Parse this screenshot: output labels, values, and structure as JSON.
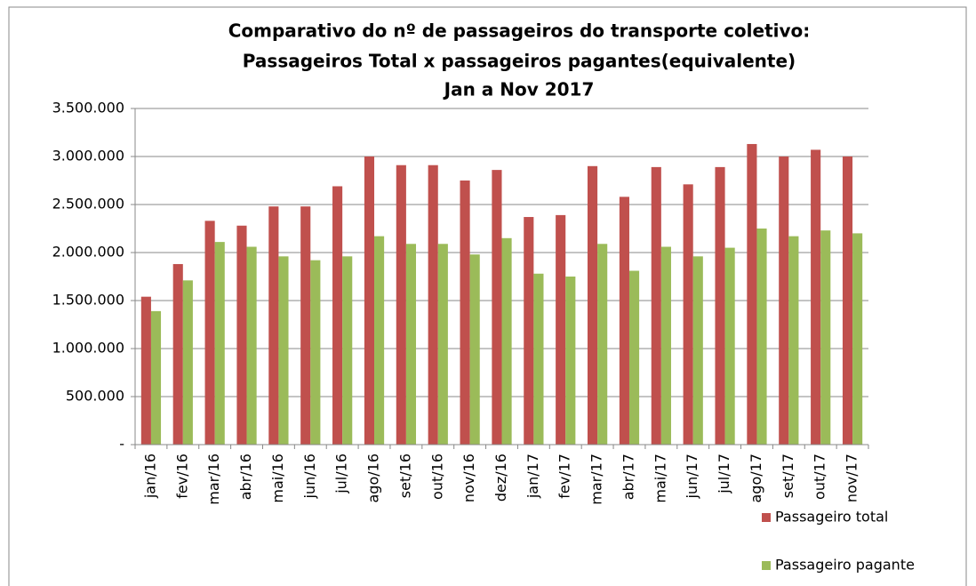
{
  "chart_data": {
    "type": "bar",
    "title": [
      "Comparativo do nº de passageiros do transporte coletivo:",
      "Passageiros Total x passageiros pagantes(equivalente)",
      "Jan a Nov 2017"
    ],
    "categories": [
      "jan/16",
      "fev/16",
      "mar/16",
      "abr/16",
      "mai/16",
      "jun/16",
      "jul/16",
      "ago/16",
      "set/16",
      "out/16",
      "nov/16",
      "dez/16",
      "jan/17",
      "fev/17",
      "mar/17",
      "abr/17",
      "mai/17",
      "jun/17",
      "jul/17",
      "ago/17",
      "set/17",
      "out/17",
      "nov/17"
    ],
    "series": [
      {
        "name": "Passageiro total",
        "color": "#c0504d",
        "values": [
          1540000,
          1880000,
          2330000,
          2280000,
          2480000,
          2480000,
          2690000,
          3000000,
          2910000,
          2910000,
          2750000,
          2860000,
          2370000,
          2390000,
          2900000,
          2580000,
          2890000,
          2710000,
          2890000,
          3130000,
          3000000,
          3070000,
          3000000
        ]
      },
      {
        "name": "Passageiro pagante",
        "color": "#9bbb59",
        "values": [
          1390000,
          1710000,
          2110000,
          2060000,
          1960000,
          1920000,
          1960000,
          2170000,
          2090000,
          2090000,
          1980000,
          2150000,
          1780000,
          1750000,
          2090000,
          1810000,
          2060000,
          1960000,
          2050000,
          2250000,
          2170000,
          2230000,
          2200000
        ]
      }
    ],
    "ylim": [
      0,
      3500000
    ],
    "yticks": [
      {
        "value": 0,
        "label": "-"
      },
      {
        "value": 500000,
        "label": "500.000"
      },
      {
        "value": 1000000,
        "label": "1.000.000"
      },
      {
        "value": 1500000,
        "label": "1.500.000"
      },
      {
        "value": 2000000,
        "label": "2.000.000"
      },
      {
        "value": 2500000,
        "label": "2.500.000"
      },
      {
        "value": 3000000,
        "label": "3.000.000"
      },
      {
        "value": 3500000,
        "label": "3.500.000"
      }
    ],
    "grid": true,
    "legend": "right"
  }
}
